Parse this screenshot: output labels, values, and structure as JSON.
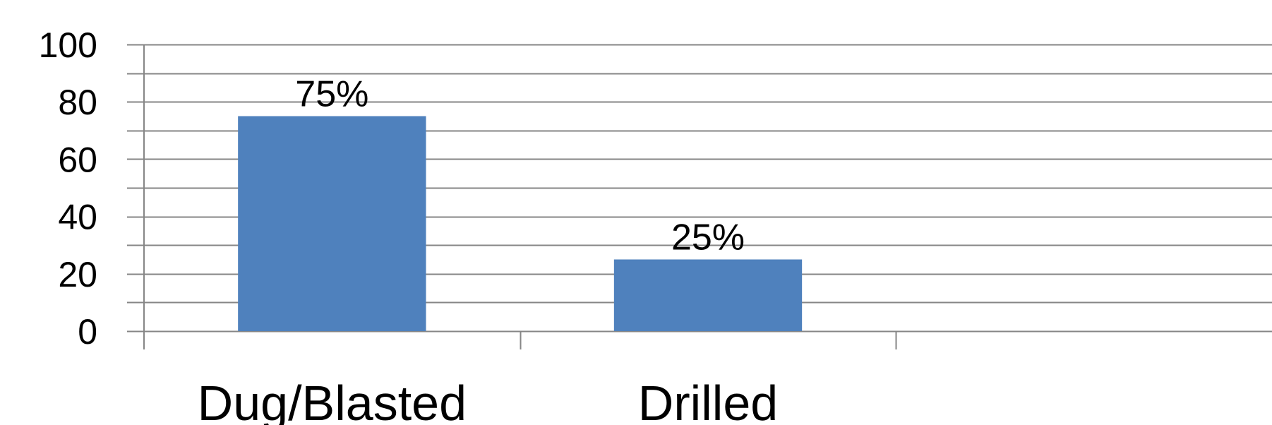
{
  "chart_data": {
    "type": "bar",
    "title": "",
    "xlabel": "",
    "ylabel": "",
    "categories": [
      "Dug/Blasted",
      "Drilled",
      ""
    ],
    "values": [
      75,
      25,
      null
    ],
    "data_labels": [
      "75%",
      "25%",
      ""
    ],
    "ylim": [
      0,
      100
    ],
    "y_ticks": [
      0,
      20,
      40,
      60,
      80,
      100
    ],
    "y_minor_step": 10,
    "grid": true,
    "legend": "none",
    "bar_color": "#4F81BD",
    "grid_color": "#868686",
    "axis_color": "#868686"
  }
}
